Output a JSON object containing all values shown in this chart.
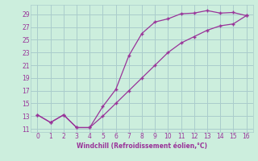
{
  "xlabel": "Windchill (Refroidissement éolien,°C)",
  "bg_color": "#cceedd",
  "grid_color": "#aacccc",
  "line_color": "#993399",
  "xlim": [
    -0.5,
    16.5
  ],
  "ylim": [
    10.5,
    30.5
  ],
  "xticks": [
    0,
    1,
    2,
    3,
    4,
    5,
    6,
    7,
    8,
    9,
    10,
    11,
    12,
    13,
    14,
    15,
    16
  ],
  "yticks": [
    11,
    13,
    15,
    17,
    19,
    21,
    23,
    25,
    27,
    29
  ],
  "curve1_x": [
    0,
    1,
    2,
    3,
    4,
    5,
    6,
    7,
    8,
    9,
    10,
    11,
    12,
    13,
    14,
    15,
    16
  ],
  "curve1_y": [
    13.2,
    12.0,
    13.2,
    11.2,
    11.2,
    14.5,
    17.2,
    22.5,
    26.0,
    27.8,
    28.3,
    29.1,
    29.2,
    29.6,
    29.2,
    29.3,
    28.8
  ],
  "curve2_x": [
    0,
    1,
    2,
    3,
    4,
    5,
    6,
    7,
    8,
    9,
    10,
    11,
    12,
    13,
    14,
    15,
    16
  ],
  "curve2_y": [
    13.2,
    12.0,
    13.2,
    11.2,
    11.2,
    13.0,
    15.0,
    17.0,
    19.0,
    21.0,
    23.0,
    24.5,
    25.5,
    26.5,
    27.2,
    27.5,
    28.8
  ]
}
